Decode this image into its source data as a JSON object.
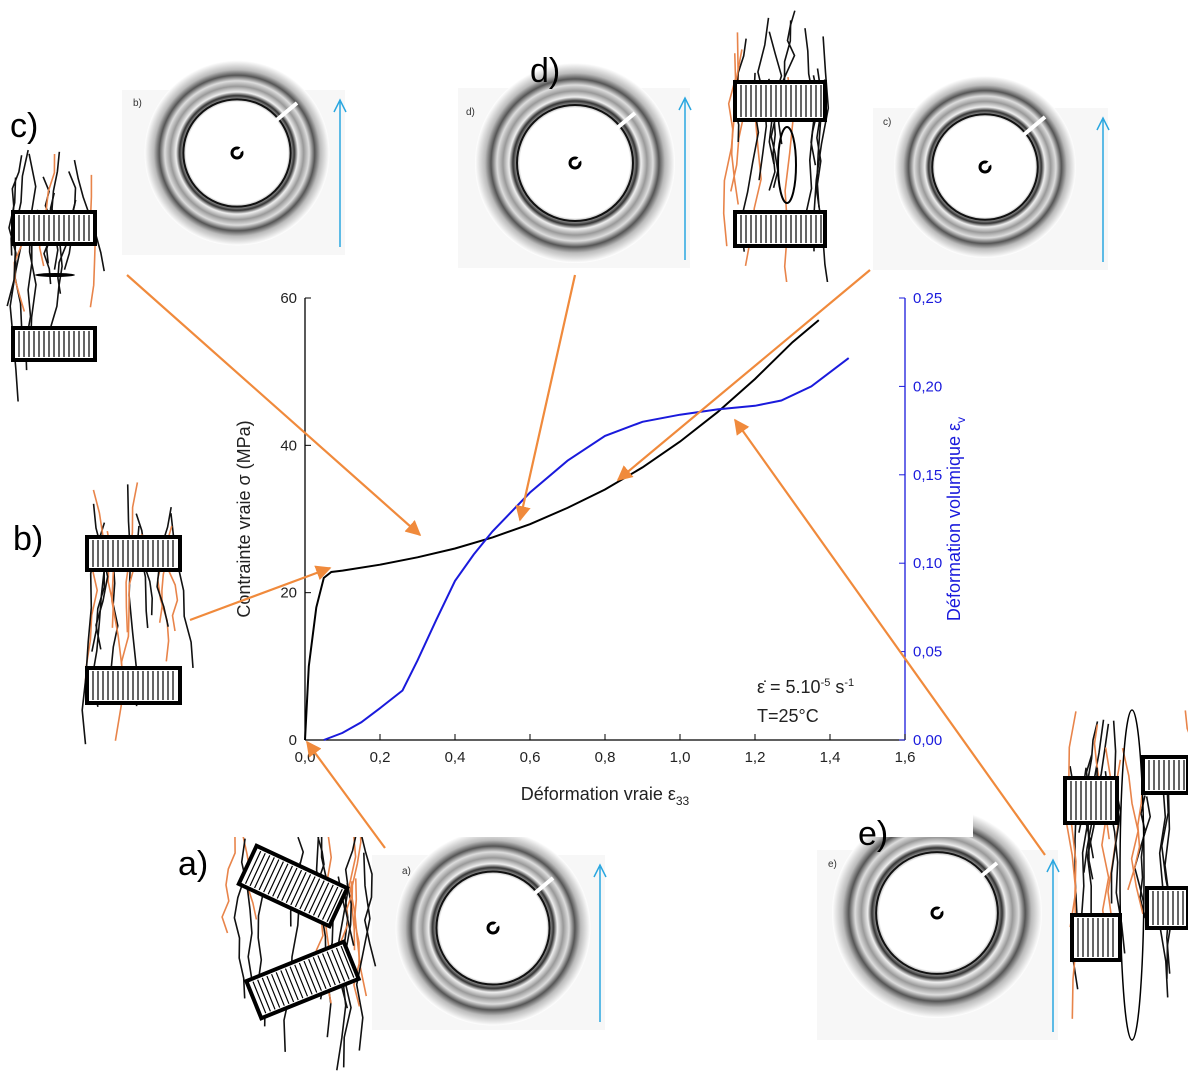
{
  "chart_data": {
    "type": "line",
    "xlabel": "Déformation vraie ε",
    "xlabel_sub": "33",
    "ylabel": "Contrainte vraie σ (MPa)",
    "y2label": "Déformation volumique ε",
    "y2label_sub": "v",
    "annotation": [
      "ε̇ = 5.10",
      "-5",
      " s",
      "-1"
    ],
    "annotation2": "T=25°C",
    "xlim": [
      0,
      1.6
    ],
    "xticks": [
      {
        "value": 0,
        "label": "0,0"
      },
      {
        "value": 0.2,
        "label": "0,2"
      },
      {
        "value": 0.4,
        "label": "0,4"
      },
      {
        "value": 0.6,
        "label": "0,6"
      },
      {
        "value": 0.8,
        "label": "0,8"
      },
      {
        "value": 1.0,
        "label": "1,0"
      },
      {
        "value": 1.2,
        "label": "1,2"
      },
      {
        "value": 1.4,
        "label": "1,4"
      },
      {
        "value": 1.6,
        "label": "1,6"
      }
    ],
    "ylim": [
      0,
      60
    ],
    "yticks": [
      0,
      20,
      40,
      60
    ],
    "y2lim": [
      0,
      0.25
    ],
    "y2ticks": [
      {
        "value": 0,
        "label": "0,00"
      },
      {
        "value": 0.05,
        "label": "0,05"
      },
      {
        "value": 0.1,
        "label": "0,10"
      },
      {
        "value": 0.15,
        "label": "0,15"
      },
      {
        "value": 0.2,
        "label": "0,20"
      },
      {
        "value": 0.25,
        "label": "0,25"
      }
    ],
    "series": [
      {
        "color": "#000000",
        "x": [
          0,
          0.01,
          0.03,
          0.05,
          0.07,
          0.1,
          0.2,
          0.3,
          0.4,
          0.5,
          0.6,
          0.7,
          0.8,
          0.9,
          1.0,
          1.1,
          1.2,
          1.3,
          1.37
        ],
        "values": [
          0,
          10,
          18,
          22,
          22.8,
          23,
          23.8,
          24.8,
          26,
          27.5,
          29.3,
          31.5,
          34,
          37,
          40.5,
          44.5,
          49,
          54,
          57
        ]
      },
      {
        "color": "#1a1adc",
        "axis": "y2",
        "x": [
          0.05,
          0.1,
          0.15,
          0.2,
          0.26,
          0.3,
          0.35,
          0.4,
          0.45,
          0.5,
          0.6,
          0.7,
          0.8,
          0.9,
          1.0,
          1.1,
          1.2,
          1.27,
          1.35,
          1.45
        ],
        "values": [
          0,
          0.004,
          0.01,
          0.018,
          0.028,
          0.045,
          0.068,
          0.09,
          0.105,
          0.118,
          0.14,
          0.158,
          0.172,
          0.18,
          0.184,
          0.187,
          0.189,
          0.192,
          0.2,
          0.216
        ]
      }
    ]
  },
  "panels": [
    {
      "label": "a)"
    },
    {
      "label": "b)"
    },
    {
      "label": "c)"
    },
    {
      "label": "d)"
    },
    {
      "label": "e)"
    }
  ],
  "images": [
    {
      "label": "a)"
    },
    {
      "label": "b)"
    },
    {
      "label": "c)"
    },
    {
      "label": "d)"
    },
    {
      "label": "e)"
    }
  ]
}
